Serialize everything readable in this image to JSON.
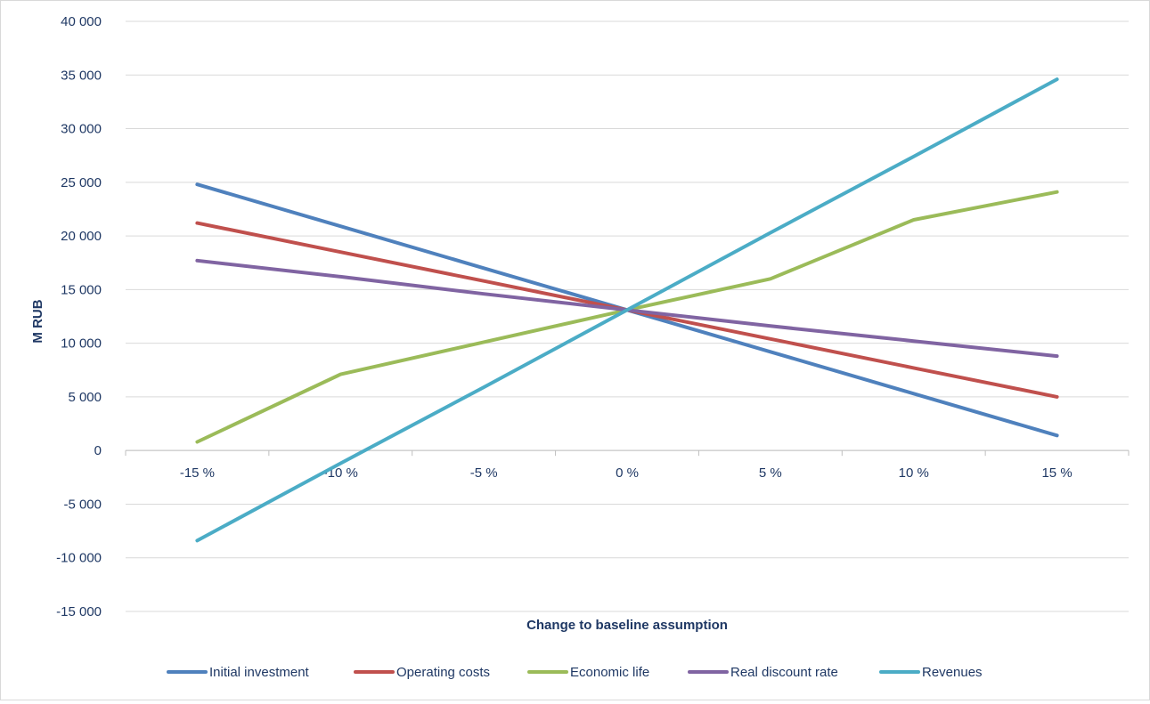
{
  "chart_data": {
    "type": "line",
    "title": "",
    "xlabel": "Change to baseline assumption",
    "ylabel": "M RUB",
    "categories": [
      "-15 %",
      "-10 %",
      "-5 %",
      "0 %",
      "5 %",
      "10 %",
      "15 %"
    ],
    "y_ticks": [
      -15000,
      -10000,
      -5000,
      0,
      5000,
      10000,
      15000,
      20000,
      25000,
      30000,
      35000,
      40000
    ],
    "y_tick_labels": [
      "-15 000",
      "-10 000",
      "-5 000",
      "0",
      "5 000",
      "10 000",
      "15 000",
      "20 000",
      "25 000",
      "30 000",
      "35 000",
      "40 000"
    ],
    "ylim": [
      -15000,
      40000
    ],
    "grid": "horizontal",
    "legend_position": "bottom",
    "series": [
      {
        "name": "Initial investment",
        "color": "#4f81bd",
        "values": [
          24800,
          20900,
          17000,
          13100,
          9200,
          5300,
          1400
        ]
      },
      {
        "name": "Operating costs",
        "color": "#c0504d",
        "values": [
          21200,
          18500,
          15800,
          13100,
          10400,
          7700,
          5000
        ]
      },
      {
        "name": "Economic life",
        "color": "#9bbb59",
        "values": [
          800,
          7100,
          10100,
          13100,
          16000,
          21500,
          24100
        ]
      },
      {
        "name": "Real discount rate",
        "color": "#8064a2",
        "values": [
          17700,
          16200,
          14600,
          13100,
          11600,
          10200,
          8800
        ]
      },
      {
        "name": "Revenues",
        "color": "#4bacc6",
        "values": [
          -8400,
          -1200,
          5900,
          13100,
          20300,
          27400,
          34600
        ]
      }
    ]
  }
}
